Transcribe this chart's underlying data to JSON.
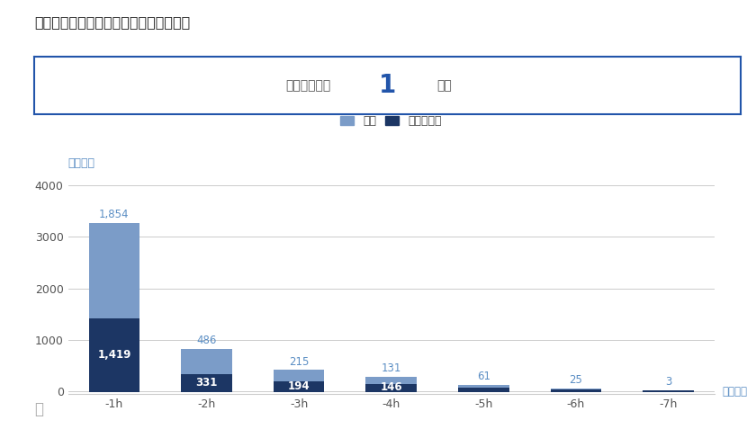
{
  "title": "東京ミッドタウン日比谷の滞在時間分布",
  "info_label": "平均滞在時間",
  "info_value": "1",
  "info_unit": "時間",
  "ylabel": "来店回数",
  "avg_label": "平均時間",
  "legend_shinki": "新規",
  "legend_repeater": "リピーター",
  "categories": [
    "-1h",
    "-2h",
    "-3h",
    "-4h",
    "-5h",
    "-6h",
    "-7h"
  ],
  "shinki": [
    1854,
    486,
    215,
    131,
    61,
    25,
    3
  ],
  "repeater": [
    1419,
    331,
    194,
    146,
    65,
    30,
    8
  ],
  "shinki_labels": [
    "1,854",
    "486",
    "215",
    "131",
    "61",
    "25",
    "3"
  ],
  "repeater_labels": [
    "1,419",
    "331",
    "194",
    "146",
    "",
    "",
    ""
  ],
  "color_shinki": "#7b9cc8",
  "color_repeater": "#1c3664",
  "color_title": "#222222",
  "color_info_border": "#2255aa",
  "color_label_blue": "#5b8ec4",
  "color_ylabel": "#5b8ec4",
  "color_avg": "#5b8ec4",
  "bg_color": "#ffffff",
  "ylim_min": -60,
  "ylim_max": 4200,
  "yticks": [
    0,
    1000,
    2000,
    3000,
    4000
  ],
  "avg_line_color": "#1c3664"
}
